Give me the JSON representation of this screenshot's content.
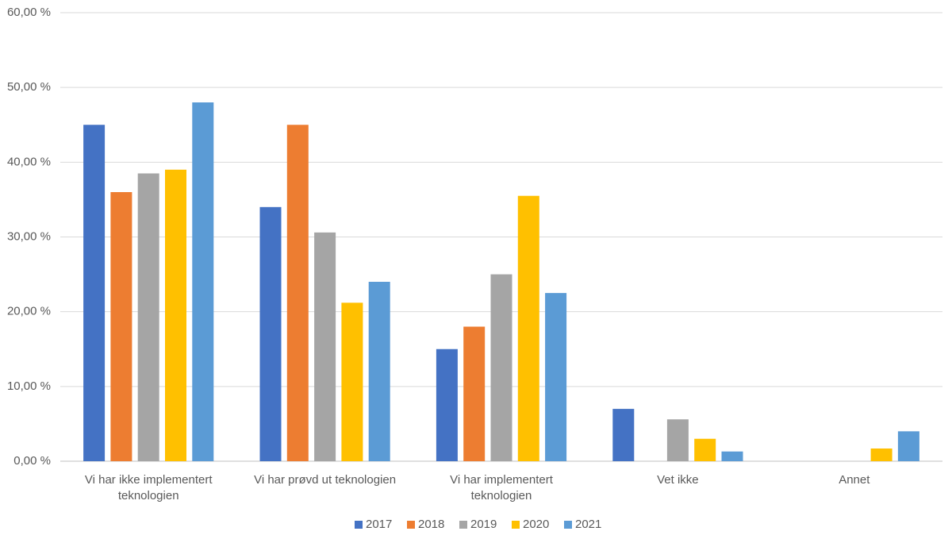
{
  "chart_data": {
    "type": "bar",
    "categories": [
      "Vi har ikke implementert teknologien",
      "Vi har prøvd ut teknologien",
      "Vi har implementert teknologien",
      "Vet ikke",
      "Annet"
    ],
    "series": [
      {
        "name": "2017",
        "color": "#4472c4",
        "values": [
          45,
          34,
          15,
          7,
          null
        ]
      },
      {
        "name": "2018",
        "color": "#ed7d31",
        "values": [
          36,
          45,
          18,
          null,
          null
        ]
      },
      {
        "name": "2019",
        "color": "#a5a5a5",
        "values": [
          38.5,
          30.6,
          25,
          5.6,
          null
        ]
      },
      {
        "name": "2020",
        "color": "#ffc000",
        "values": [
          39,
          21.2,
          35.5,
          3,
          1.7
        ]
      },
      {
        "name": "2021",
        "color": "#5b9bd5",
        "values": [
          48,
          24,
          22.5,
          1.3,
          4
        ]
      }
    ],
    "ylim": [
      0,
      60
    ],
    "yticks": [
      {
        "value": 0,
        "label": "0,00 %"
      },
      {
        "value": 10,
        "label": "10,00 %"
      },
      {
        "value": 20,
        "label": "20,00 %"
      },
      {
        "value": 30,
        "label": "30,00 %"
      },
      {
        "value": 40,
        "label": "40,00 %"
      },
      {
        "value": 50,
        "label": "50,00 %"
      },
      {
        "value": 60,
        "label": "60,00 %"
      }
    ],
    "grid": true,
    "legend": "bottom"
  }
}
